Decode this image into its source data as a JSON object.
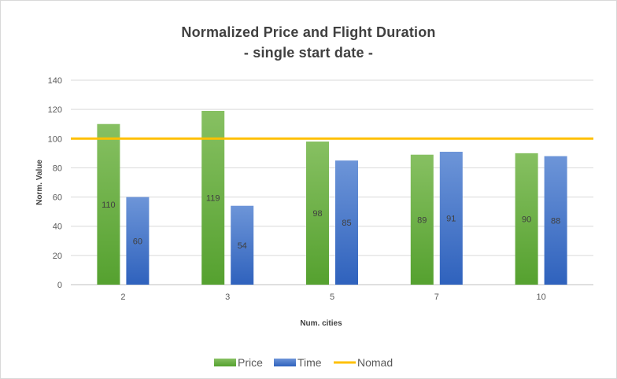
{
  "chart_data": {
    "type": "bar",
    "title": "Normalized Price and Flight Duration",
    "subtitle": "- single start date -",
    "xlabel": "Num. cities",
    "ylabel": "Norm. Value",
    "categories": [
      "2",
      "3",
      "5",
      "7",
      "10"
    ],
    "series": [
      {
        "name": "Price",
        "type": "bar",
        "color": "#5fa63a",
        "values": [
          110,
          119,
          98,
          89,
          90
        ]
      },
      {
        "name": "Time",
        "type": "bar",
        "color": "#3c6fc4",
        "values": [
          60,
          54,
          85,
          91,
          88
        ]
      },
      {
        "name": "Nomad",
        "type": "line",
        "color": "#ffc000",
        "value": 100
      }
    ],
    "ylim": [
      0,
      140
    ],
    "yticks": [
      0,
      20,
      40,
      60,
      80,
      100,
      120,
      140
    ],
    "grid": true,
    "legend_position": "bottom",
    "data_labels": true
  }
}
